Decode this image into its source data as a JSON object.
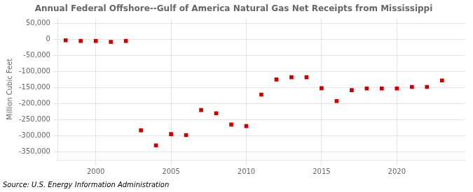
{
  "chart_data": {
    "type": "scatter",
    "title": "Annual Federal Offshore--Gulf of America Natural Gas Net Receipts from Mississippi",
    "ylabel": "Million Cubic Feet",
    "annotations": [
      "Source: U.S. Energy Information Administration"
    ],
    "x": [
      1998,
      1999,
      2000,
      2001,
      2002,
      2003,
      2004,
      2005,
      2006,
      2007,
      2008,
      2009,
      2010,
      2011,
      2012,
      2013,
      2014,
      2015,
      2016,
      2017,
      2018,
      2019,
      2020,
      2021,
      2022,
      2023
    ],
    "values": [
      -3000,
      -5000,
      -5000,
      -8000,
      -5000,
      -283000,
      -330000,
      -295000,
      -298000,
      -220000,
      -230000,
      -265000,
      -270000,
      -172000,
      -125000,
      -118000,
      -118000,
      -152000,
      -192000,
      -158000,
      -153000,
      -153000,
      -153000,
      -148000,
      -148000,
      -128000
    ],
    "color": "#cc0000",
    "marker": "square",
    "xlim": [
      1997.5,
      2024.5
    ],
    "xticks": [
      2000,
      2005,
      2010,
      2015,
      2020
    ],
    "ylim": [
      -375000,
      65000
    ],
    "yticks": [
      {
        "value": 50000,
        "label": "50,000"
      },
      0,
      {
        "value": -50000,
        "label": "-50,000"
      },
      {
        "value": -100000,
        "label": "-100,000"
      },
      {
        "value": -150000,
        "label": "-150,000"
      },
      {
        "value": -200000,
        "label": "-200,000"
      },
      {
        "value": -250000,
        "label": "-250,000"
      },
      {
        "value": -300000,
        "label": "-300,000"
      },
      {
        "value": -350000,
        "label": "-350,000"
      }
    ],
    "grid": true
  }
}
